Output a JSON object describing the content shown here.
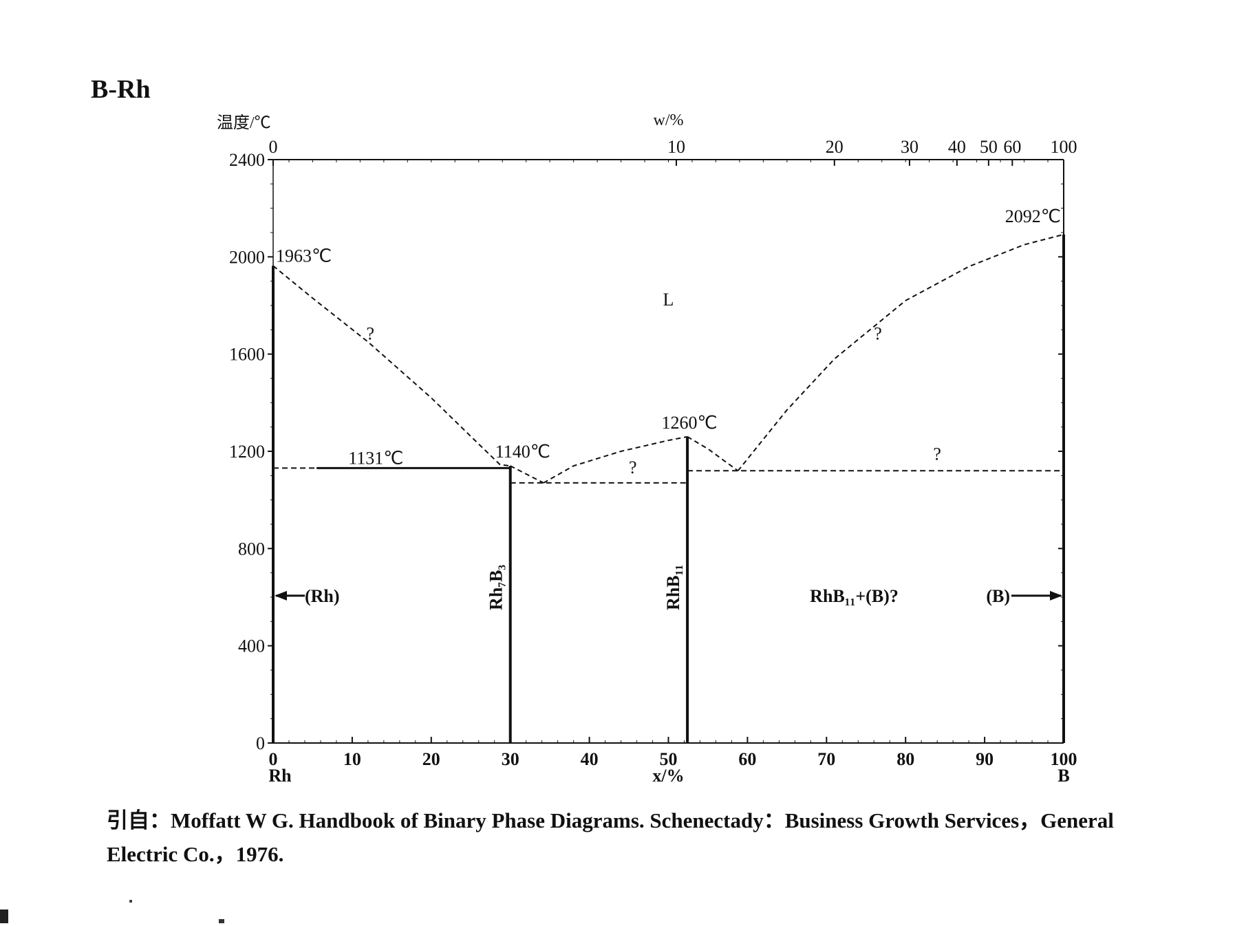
{
  "title": "B-Rh",
  "chart_data": {
    "type": "phase-diagram",
    "system": "B-Rh",
    "y_axis": {
      "label": "温度/℃",
      "ylim": [
        0,
        2400
      ],
      "ticks": [
        0,
        400,
        800,
        1200,
        1600,
        2000,
        2400
      ]
    },
    "x_axis_bottom": {
      "label": "x/%",
      "xlim": [
        0,
        100
      ],
      "ticks": [
        0,
        10,
        20,
        30,
        40,
        50,
        60,
        70,
        80,
        90,
        100
      ],
      "end_labels": {
        "left": "Rh",
        "right": "B"
      }
    },
    "x_axis_top": {
      "label": "w/%",
      "ticks": [
        {
          "label": "0",
          "x_at": 0
        },
        {
          "label": "10",
          "x_at": 51
        },
        {
          "label": "20",
          "x_at": 71
        },
        {
          "label": "30",
          "x_at": 80.5
        },
        {
          "label": "40",
          "x_at": 86.5
        },
        {
          "label": "50",
          "x_at": 90.5
        },
        {
          "label": "60",
          "x_at": 93.5
        },
        {
          "label": "100",
          "x_at": 100
        }
      ]
    },
    "temperature_labels": [
      {
        "text": "1963℃",
        "x": 0,
        "T": 1963
      },
      {
        "text": "2092℃",
        "x": 100,
        "T": 2092
      },
      {
        "text": "1131℃",
        "x": 13,
        "T": 1131
      },
      {
        "text": "1140℃",
        "x": 30,
        "T": 1140
      },
      {
        "text": "1260℃",
        "x": 52.4,
        "T": 1260
      }
    ],
    "phase_labels": [
      "L",
      "(Rh)",
      "(B)",
      "RhB₁₁+(B)?"
    ],
    "compound_labels": [
      "Rh₇B₃",
      "RhB₁₁"
    ],
    "uncertain_mark": "?",
    "liquidus": [
      {
        "name": "Rh-side",
        "style": "dashed",
        "points": [
          [
            0,
            1963
          ],
          [
            5,
            1830
          ],
          [
            12,
            1650
          ],
          [
            20,
            1420
          ],
          [
            26,
            1230
          ],
          [
            28.7,
            1145
          ],
          [
            30,
            1140
          ]
        ]
      },
      {
        "name": "Rh7B3-eutectic",
        "style": "dashed",
        "points": [
          [
            30,
            1140
          ],
          [
            34.2,
            1070
          ]
        ]
      },
      {
        "name": "mid",
        "style": "dashed",
        "points": [
          [
            34.2,
            1070
          ],
          [
            38,
            1140
          ],
          [
            44,
            1200
          ],
          [
            50,
            1245
          ],
          [
            52.4,
            1260
          ]
        ]
      },
      {
        "name": "RhB11-right",
        "style": "dashed",
        "points": [
          [
            52.4,
            1260
          ],
          [
            55,
            1210
          ],
          [
            58.8,
            1120
          ]
        ]
      },
      {
        "name": "B-side",
        "style": "dashed",
        "points": [
          [
            58.8,
            1120
          ],
          [
            65,
            1370
          ],
          [
            71,
            1580
          ],
          [
            80,
            1820
          ],
          [
            88,
            1960
          ],
          [
            95,
            2050
          ],
          [
            100,
            2092
          ]
        ]
      }
    ],
    "horizontal_lines": [
      {
        "T": 1131,
        "x_from": 0,
        "x_to": 5.5,
        "style": "dashed"
      },
      {
        "T": 1131,
        "x_from": 5.5,
        "x_to": 30,
        "style": "solid"
      },
      {
        "T": 1070,
        "x_from": 30,
        "x_to": 52.4,
        "style": "dashed"
      },
      {
        "T": 1120,
        "x_from": 52.4,
        "x_to": 100,
        "style": "dashed"
      }
    ],
    "vertical_lines": [
      {
        "x": 0,
        "T_from": 0,
        "T_to": 1963,
        "style": "solid"
      },
      {
        "x": 30,
        "T_from": 0,
        "T_to": 1140,
        "style": "solid"
      },
      {
        "x": 52.4,
        "T_from": 0,
        "T_to": 1260,
        "style": "solid"
      },
      {
        "x": 100,
        "T_from": 0,
        "T_to": 2092,
        "style": "solid"
      }
    ]
  },
  "citation": {
    "line1": "引自：Moffatt W G. Handbook of Binary Phase Diagrams. Schenectady：Business Growth Services，General",
    "line2": "Electric Co.，1976."
  }
}
